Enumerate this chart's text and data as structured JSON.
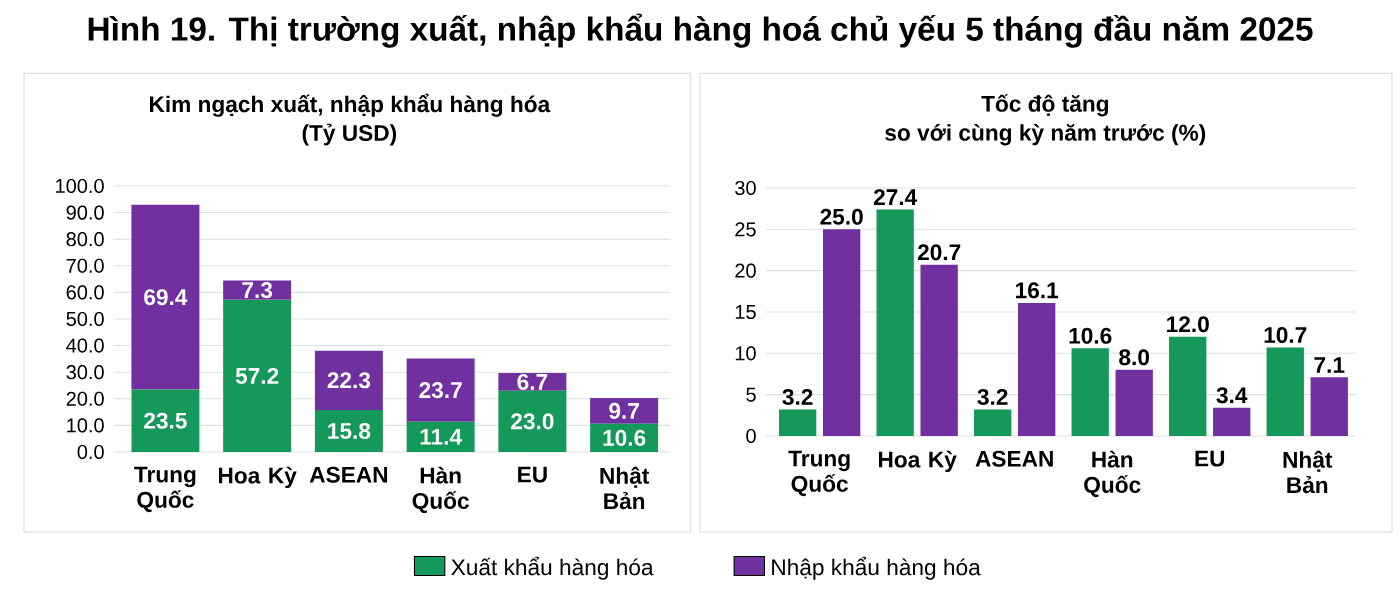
{
  "chart_data": [
    {
      "type": "bar",
      "title": "Hình 19. Thị trường xuất, nhập khẩu hàng hoá chủ yếu 5 tháng đầu năm 2025",
      "subtitle": "Kim ngạch xuất, nhập khẩu hàng hóa",
      "ylabel": "(Tỷ USD)",
      "categories": [
        "Trung Quốc",
        "Hoa Kỳ",
        "ASEAN",
        "Hàn Quốc",
        "EU",
        "Nhật Bản"
      ],
      "stacked": true,
      "ylim": [
        0,
        100
      ],
      "yticks": [
        {
          "value": 0,
          "label": "0.0"
        },
        {
          "value": 10,
          "label": "10.0"
        },
        {
          "value": 20,
          "label": "20.0"
        },
        {
          "value": 30,
          "label": "30.0"
        },
        {
          "value": 40,
          "label": "40.0"
        },
        {
          "value": 50,
          "label": "50.0"
        },
        {
          "value": 60,
          "label": "60.0"
        },
        {
          "value": 70,
          "label": "70.0"
        },
        {
          "value": 80,
          "label": "80.0"
        },
        {
          "value": 90,
          "label": "90.0"
        },
        {
          "value": 100,
          "label": "100.0"
        }
      ],
      "series": [
        {
          "name": "Xuất khẩu hàng hóa",
          "color": "#14995a",
          "values": [
            23.5,
            57.2,
            15.8,
            11.4,
            23.0,
            10.6
          ],
          "value_labels": [
            "23.5",
            "57.2",
            "15.8",
            "11.4",
            "23.0",
            "10.6"
          ]
        },
        {
          "name": "Nhập khẩu hàng hóa",
          "color": "#7030a0",
          "values": [
            69.4,
            7.3,
            22.3,
            23.7,
            6.7,
            9.7
          ],
          "value_labels": [
            "69.4",
            "7.3",
            "22.3",
            "23.7",
            "6.7",
            "9.7"
          ]
        }
      ],
      "grid": "y",
      "legend": "bottom"
    },
    {
      "type": "bar",
      "title": "Tốc độ tăng",
      "subtitle": "so với cùng kỳ năm trước (%)",
      "categories": [
        "Trung Quốc",
        "Hoa Kỳ",
        "ASEAN",
        "Hàn Quốc",
        "EU",
        "Nhật Bản"
      ],
      "ylim": [
        0,
        30
      ],
      "yticks": [
        0,
        5,
        10,
        15,
        20,
        25,
        30
      ],
      "series": [
        {
          "color": "#14995a",
          "values": [
            3.2,
            27.4,
            3.2,
            10.6,
            12.0,
            10.7
          ],
          "value_labels": [
            "3.2",
            "27.4",
            "3.2",
            "10.6",
            "12.0",
            "10.7"
          ]
        },
        {
          "color": "#7030a0",
          "values": [
            25.0,
            20.7,
            16.1,
            8.0,
            3.4,
            7.1
          ],
          "value_labels": [
            "25.0",
            "20.7",
            "16.1",
            "8.0",
            "3.4",
            "7.1"
          ]
        }
      ],
      "grid": "y"
    }
  ]
}
